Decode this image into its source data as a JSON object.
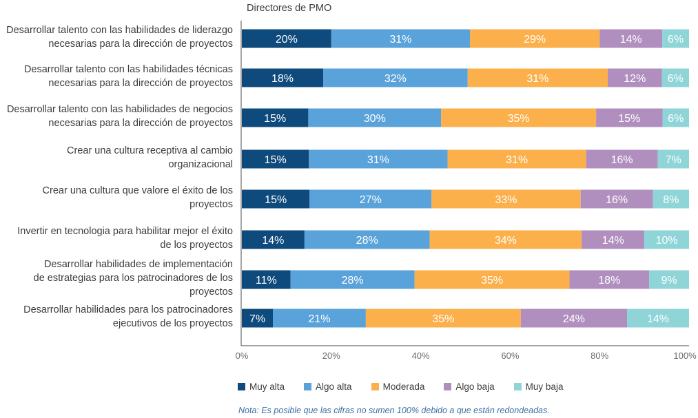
{
  "chart_data": {
    "type": "bar",
    "orientation": "horizontal-stacked",
    "title": "Directores de PMO",
    "categories": [
      [
        "Desarrollar talento con las habilidades de liderazgo",
        "necesarias para la dirección de proyectos"
      ],
      [
        "Desarrollar talento con las habilidades técnicas",
        "necesarias para la dirección de proyectos"
      ],
      [
        "Desarrollar talento con las habilidades de negocios",
        "necesarias para la dirección de proyectos"
      ],
      [
        "Crear una cultura receptiva al cambio",
        "organizacional"
      ],
      [
        "Crear una cultura que valore el éxito de los",
        "proyectos"
      ],
      [
        "Invertir en tecnologia para habilitar mejor el éxito",
        "de los proyectos"
      ],
      [
        "Desarrollar habilidades de implementación",
        "de estrategias para los patrocinadores de los",
        "proyectos"
      ],
      [
        "Desarrollar habilidades para los patrocinadores",
        "ejecutivos de los proyectos"
      ]
    ],
    "series": [
      {
        "name": "Muy alta",
        "color": "#0f4a7c",
        "values": [
          20,
          18,
          15,
          15,
          15,
          14,
          11,
          7
        ],
        "labels": [
          "20%",
          "18%",
          "15%",
          "15%",
          "15%",
          "14%",
          "11%",
          "7%"
        ]
      },
      {
        "name": "Algo alta",
        "color": "#5aa3da",
        "values": [
          31,
          32,
          30,
          31,
          27,
          28,
          28,
          21
        ],
        "labels": [
          "31%",
          "32%",
          "30%",
          "31%",
          "27%",
          "28%",
          "28%",
          "21%"
        ]
      },
      {
        "name": "Moderada",
        "color": "#fbb04c",
        "values": [
          29,
          31,
          35,
          31,
          33,
          34,
          35,
          35
        ],
        "labels": [
          "29%",
          "31%",
          "35%",
          "31%",
          "33%",
          "34%",
          "35%",
          "35%"
        ]
      },
      {
        "name": "Algo baja",
        "color": "#b08fbf",
        "values": [
          14,
          12,
          15,
          16,
          16,
          14,
          18,
          24
        ],
        "labels": [
          "14%",
          "12%",
          "15%",
          "16%",
          "16%",
          "14%",
          "18%",
          "24%"
        ]
      },
      {
        "name": "Muy baja",
        "color": "#8fd5d8",
        "values": [
          6,
          6,
          6,
          7,
          8,
          10,
          9,
          14
        ],
        "labels": [
          "6%",
          "6%",
          "6%",
          "7%",
          "8%",
          "10%",
          "9%",
          "14%"
        ]
      }
    ],
    "xlim": [
      0,
      100
    ],
    "xticks": [
      "0%",
      "20%",
      "40%",
      "60%",
      "80%",
      "100%"
    ],
    "legend_position": "bottom",
    "grid": false
  },
  "note": "Nota: Es posible que las cifras no sumen 100% debido a que están redondeadas."
}
